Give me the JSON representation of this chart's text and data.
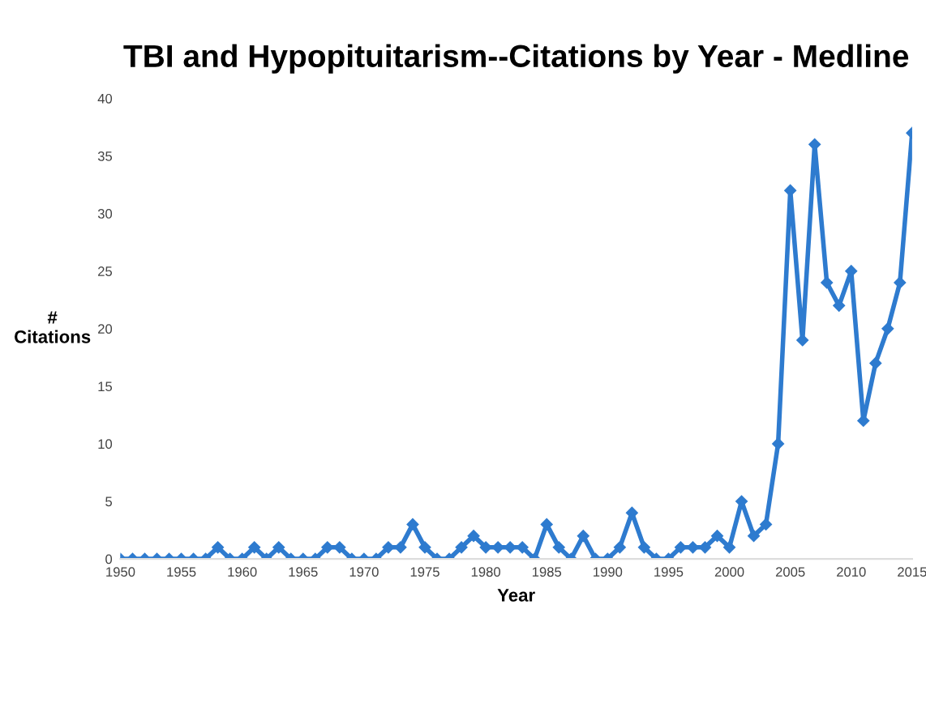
{
  "chart_data": {
    "type": "line",
    "title": "TBI and Hypopituitarism--Citations by Year - Medline",
    "xlabel": "Year",
    "ylabel": "#\nCitations",
    "x": [
      1950,
      1951,
      1952,
      1953,
      1954,
      1955,
      1956,
      1957,
      1958,
      1959,
      1960,
      1961,
      1962,
      1963,
      1964,
      1965,
      1966,
      1967,
      1968,
      1969,
      1970,
      1971,
      1972,
      1973,
      1974,
      1975,
      1976,
      1977,
      1978,
      1979,
      1980,
      1981,
      1982,
      1983,
      1984,
      1985,
      1986,
      1987,
      1988,
      1989,
      1990,
      1991,
      1992,
      1993,
      1994,
      1995,
      1996,
      1997,
      1998,
      1999,
      2000,
      2001,
      2002,
      2003,
      2004,
      2005,
      2006,
      2007,
      2008,
      2009,
      2010,
      2011,
      2012,
      2013,
      2014,
      2015
    ],
    "series": [
      {
        "color": "#2e7bcf",
        "values": [
          0,
          0,
          0,
          0,
          0,
          0,
          0,
          0,
          1,
          0,
          0,
          1,
          0,
          1,
          0,
          0,
          0,
          1,
          1,
          0,
          0,
          0,
          1,
          1,
          3,
          1,
          0,
          0,
          1,
          2,
          1,
          1,
          1,
          1,
          0,
          3,
          1,
          0,
          2,
          0,
          0,
          1,
          4,
          1,
          0,
          0,
          1,
          1,
          1,
          2,
          1,
          5,
          2,
          3,
          10,
          32,
          19,
          36,
          24,
          22,
          25,
          12,
          17,
          20,
          24,
          37
        ]
      }
    ],
    "xlim": [
      1950,
      2015
    ],
    "xticks": [
      1950,
      1955,
      1960,
      1965,
      1970,
      1975,
      1980,
      1985,
      1990,
      1995,
      2000,
      2005,
      2010,
      2015
    ],
    "ylim": [
      0,
      40
    ],
    "yticks": [
      0,
      5,
      10,
      15,
      20,
      25,
      30,
      35,
      40
    ],
    "grid": false,
    "legend": false,
    "marker": "diamond",
    "line_style": "solid"
  }
}
